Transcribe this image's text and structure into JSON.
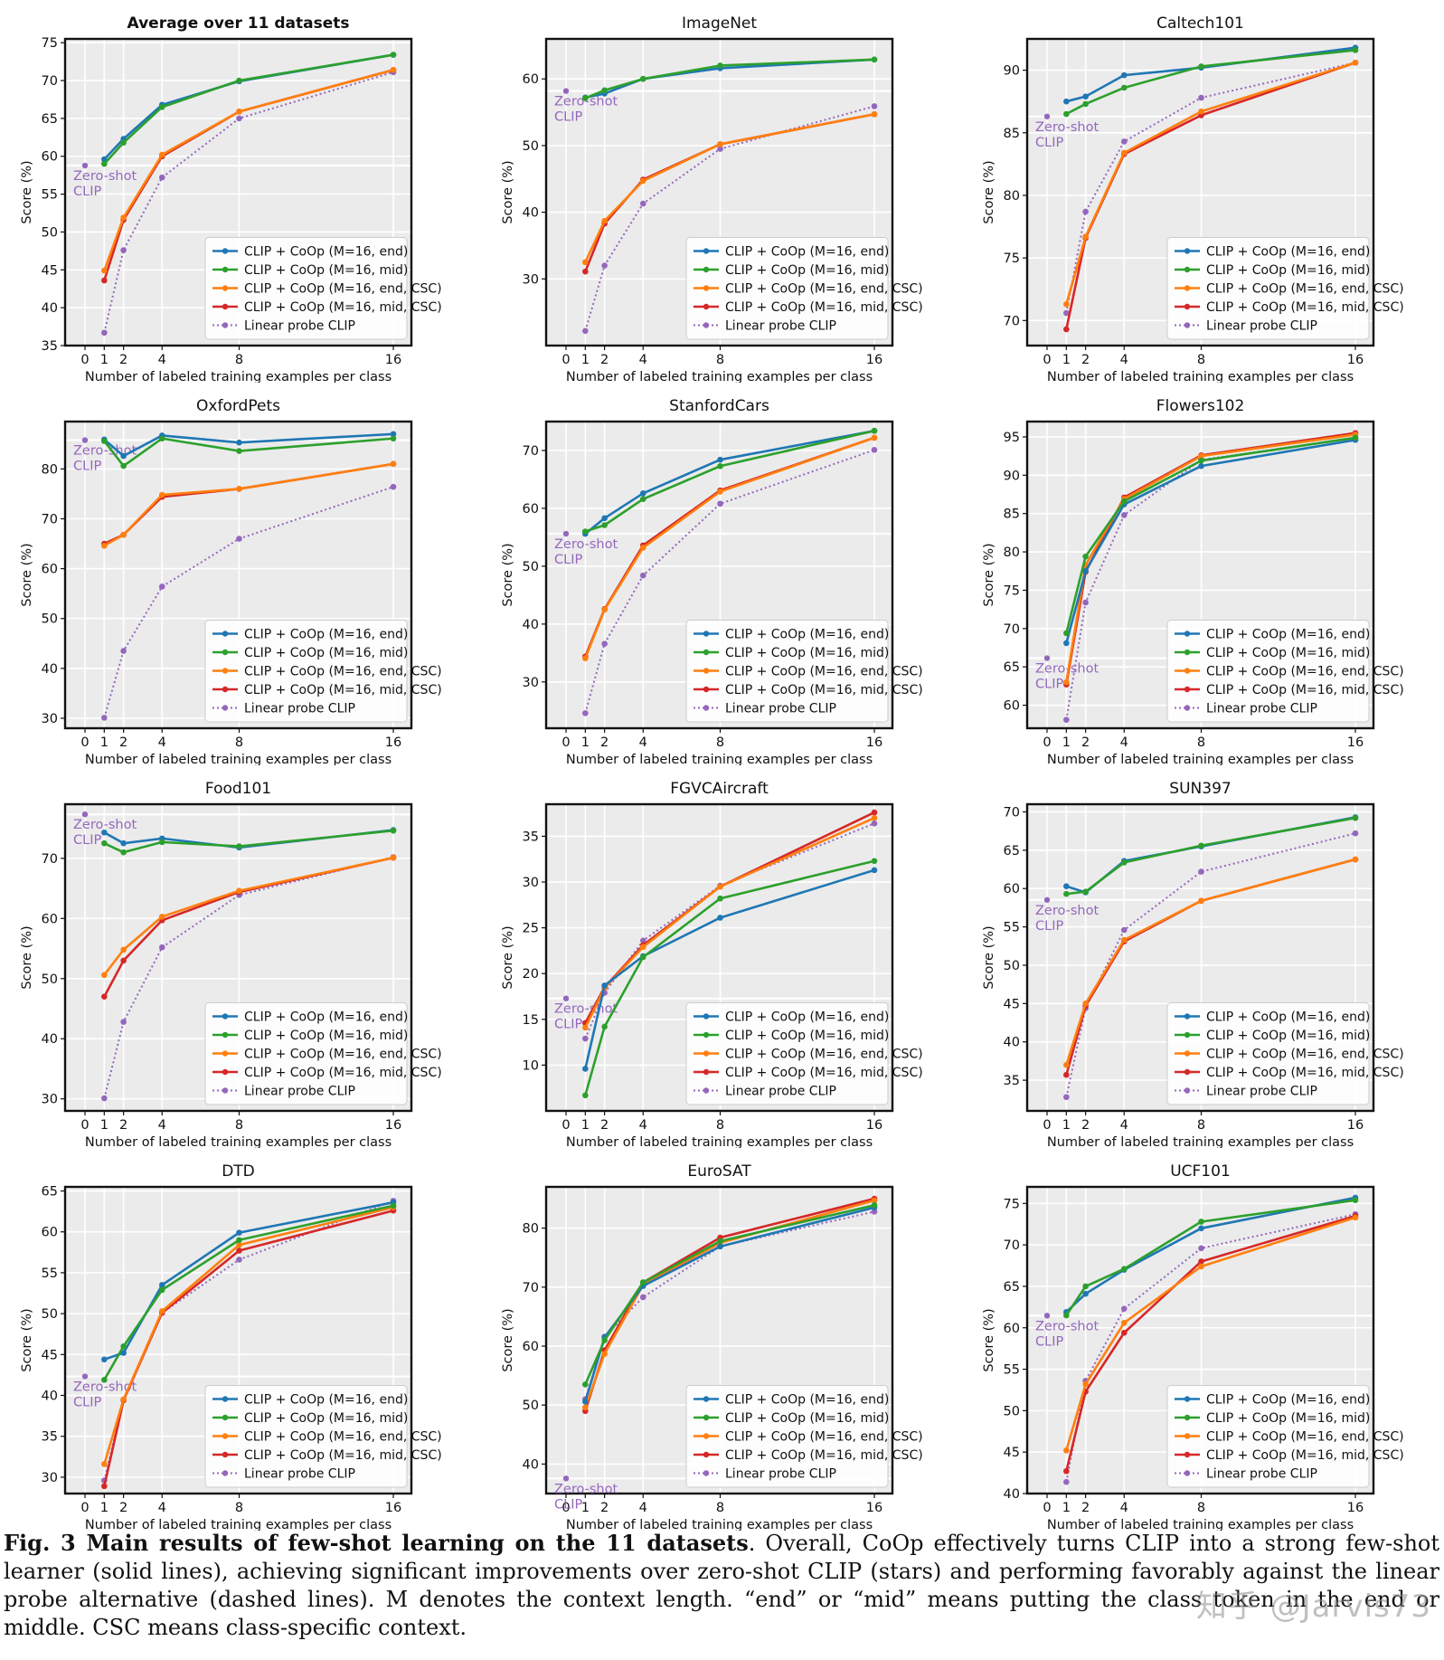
{
  "chart_data": [
    {
      "type": "line",
      "title": "Average over 11 datasets",
      "title_bold": true,
      "xlabel": "Number of labeled training examples per class",
      "ylabel": "Score (%)",
      "x": [
        1,
        2,
        4,
        8,
        16
      ],
      "x_ticks": [
        0,
        1,
        2,
        4,
        8,
        16
      ],
      "ylim": [
        35,
        75.5
      ],
      "yticks": [
        35,
        40,
        45,
        50,
        55,
        60,
        65,
        70,
        75
      ],
      "legend": "bottom-right",
      "zero_shot": 58.77,
      "series": [
        {
          "name": "CLIP + CoOp (M=16, end)",
          "values": [
            59.6,
            62.3,
            66.8,
            69.9,
            73.4
          ]
        },
        {
          "name": "CLIP + CoOp (M=16, mid)",
          "values": [
            59.0,
            61.8,
            66.5,
            70.0,
            73.4
          ]
        },
        {
          "name": "CLIP + CoOp (M=16, end, CSC)",
          "values": [
            44.9,
            51.9,
            60.2,
            65.9,
            71.4
          ]
        },
        {
          "name": "CLIP + CoOp (M=16, mid, CSC)",
          "values": [
            43.6,
            51.6,
            60.0,
            65.9,
            71.4
          ]
        },
        {
          "name": "Linear probe CLIP",
          "values": [
            36.7,
            47.6,
            57.2,
            65.0,
            71.1
          ]
        }
      ]
    },
    {
      "type": "line",
      "title": "ImageNet",
      "xlabel": "Number of labeled training examples per class",
      "ylabel": "Score (%)",
      "x": [
        1,
        2,
        4,
        8,
        16
      ],
      "x_ticks": [
        0,
        1,
        2,
        4,
        8,
        16
      ],
      "ylim": [
        20,
        66
      ],
      "yticks": [
        30,
        40,
        50,
        60
      ],
      "legend": "bottom-right",
      "zero_shot": 58.18,
      "series": [
        {
          "name": "CLIP + CoOp (M=16, end)",
          "values": [
            57.2,
            57.8,
            60.0,
            61.6,
            62.9
          ]
        },
        {
          "name": "CLIP + CoOp (M=16, mid)",
          "values": [
            57.1,
            58.3,
            60.0,
            62.0,
            62.9
          ]
        },
        {
          "name": "CLIP + CoOp (M=16, end, CSC)",
          "values": [
            32.5,
            38.7,
            44.7,
            50.2,
            54.7
          ]
        },
        {
          "name": "CLIP + CoOp (M=16, mid, CSC)",
          "values": [
            31.1,
            38.3,
            44.9,
            50.2,
            54.7
          ]
        },
        {
          "name": "Linear probe CLIP",
          "values": [
            22.2,
            32.0,
            41.3,
            49.5,
            55.9
          ]
        }
      ]
    },
    {
      "type": "line",
      "title": "Caltech101",
      "xlabel": "Number of labeled training examples per class",
      "ylabel": "Score (%)",
      "x": [
        1,
        2,
        4,
        8,
        16
      ],
      "x_ticks": [
        0,
        1,
        2,
        4,
        8,
        16
      ],
      "ylim": [
        68,
        92.5
      ],
      "yticks": [
        70,
        75,
        80,
        85,
        90
      ],
      "legend": "bottom-right",
      "zero_shot": 86.3,
      "series": [
        {
          "name": "CLIP + CoOp (M=16, end)",
          "values": [
            87.5,
            87.9,
            89.6,
            90.2,
            91.8
          ]
        },
        {
          "name": "CLIP + CoOp (M=16, mid)",
          "values": [
            86.5,
            87.3,
            88.6,
            90.3,
            91.6
          ]
        },
        {
          "name": "CLIP + CoOp (M=16, end, CSC)",
          "values": [
            71.3,
            76.7,
            83.4,
            86.7,
            90.6
          ]
        },
        {
          "name": "CLIP + CoOp (M=16, mid, CSC)",
          "values": [
            69.3,
            76.6,
            83.3,
            86.4,
            90.6
          ]
        },
        {
          "name": "Linear probe CLIP",
          "values": [
            70.6,
            78.7,
            84.3,
            87.8,
            90.6
          ]
        }
      ]
    },
    {
      "type": "line",
      "title": "OxfordPets",
      "xlabel": "Number of labeled training examples per class",
      "ylabel": "Score (%)",
      "x": [
        1,
        2,
        4,
        8,
        16
      ],
      "x_ticks": [
        0,
        1,
        2,
        4,
        8,
        16
      ],
      "ylim": [
        28,
        89.5
      ],
      "yticks": [
        30,
        40,
        50,
        60,
        70,
        80
      ],
      "legend": "bottom-right",
      "zero_shot": 85.77,
      "series": [
        {
          "name": "CLIP + CoOp (M=16, end)",
          "values": [
            85.9,
            82.6,
            86.7,
            85.3,
            87.0
          ]
        },
        {
          "name": "CLIP + CoOp (M=16, mid)",
          "values": [
            85.6,
            80.6,
            86.1,
            83.6,
            86.1
          ]
        },
        {
          "name": "CLIP + CoOp (M=16, end, CSC)",
          "values": [
            64.6,
            66.8,
            74.8,
            76.0,
            81.0
          ]
        },
        {
          "name": "CLIP + CoOp (M=16, mid, CSC)",
          "values": [
            65.0,
            66.8,
            74.4,
            76.0,
            81.0
          ]
        },
        {
          "name": "Linear probe CLIP",
          "values": [
            30.1,
            43.5,
            56.4,
            66.0,
            76.4
          ]
        }
      ]
    },
    {
      "type": "line",
      "title": "StanfordCars",
      "xlabel": "Number of labeled training examples per class",
      "ylabel": "Score (%)",
      "x": [
        1,
        2,
        4,
        8,
        16
      ],
      "x_ticks": [
        0,
        1,
        2,
        4,
        8,
        16
      ],
      "ylim": [
        22,
        75
      ],
      "yticks": [
        30,
        40,
        50,
        60,
        70
      ],
      "legend": "bottom-right",
      "zero_shot": 55.61,
      "series": [
        {
          "name": "CLIP + CoOp (M=16, end)",
          "values": [
            55.6,
            58.3,
            62.6,
            68.4,
            73.4
          ]
        },
        {
          "name": "CLIP + CoOp (M=16, mid)",
          "values": [
            56.0,
            57.1,
            61.6,
            67.3,
            73.4
          ]
        },
        {
          "name": "CLIP + CoOp (M=16, end, CSC)",
          "values": [
            34.1,
            42.5,
            53.2,
            62.9,
            72.2
          ]
        },
        {
          "name": "CLIP + CoOp (M=16, mid, CSC)",
          "values": [
            34.4,
            42.6,
            53.6,
            63.1,
            72.2
          ]
        },
        {
          "name": "Linear probe CLIP",
          "values": [
            24.6,
            36.6,
            48.4,
            60.8,
            70.1
          ]
        }
      ]
    },
    {
      "type": "line",
      "title": "Flowers102",
      "xlabel": "Number of labeled training examples per class",
      "ylabel": "Score (%)",
      "x": [
        1,
        2,
        4,
        8,
        16
      ],
      "x_ticks": [
        0,
        1,
        2,
        4,
        8,
        16
      ],
      "ylim": [
        57,
        97
      ],
      "yticks": [
        60,
        65,
        70,
        75,
        80,
        85,
        90,
        95
      ],
      "legend": "bottom-right",
      "zero_shot": 66.14,
      "series": [
        {
          "name": "CLIP + CoOp (M=16, end)",
          "values": [
            68.1,
            77.5,
            86.2,
            91.2,
            94.6
          ]
        },
        {
          "name": "CLIP + CoOp (M=16, mid)",
          "values": [
            69.4,
            79.4,
            86.6,
            91.9,
            94.9
          ]
        },
        {
          "name": "CLIP + CoOp (M=16, end, CSC)",
          "values": [
            63.0,
            78.3,
            86.9,
            92.5,
            95.3
          ]
        },
        {
          "name": "CLIP + CoOp (M=16, mid, CSC)",
          "values": [
            62.7,
            77.4,
            87.1,
            92.6,
            95.5
          ]
        },
        {
          "name": "Linear probe CLIP",
          "values": [
            58.1,
            73.4,
            84.8,
            92.0,
            94.9
          ]
        }
      ]
    },
    {
      "type": "line",
      "title": "Food101",
      "xlabel": "Number of labeled training examples per class",
      "ylabel": "Score (%)",
      "x": [
        1,
        2,
        4,
        8,
        16
      ],
      "x_ticks": [
        0,
        1,
        2,
        4,
        8,
        16
      ],
      "ylim": [
        28,
        79
      ],
      "yticks": [
        30,
        40,
        50,
        60,
        70
      ],
      "legend": "bottom-right",
      "zero_shot": 77.31,
      "series": [
        {
          "name": "CLIP + CoOp (M=16, end)",
          "values": [
            74.3,
            72.5,
            73.3,
            71.8,
            74.7
          ]
        },
        {
          "name": "CLIP + CoOp (M=16, mid)",
          "values": [
            72.5,
            71.0,
            72.7,
            72.0,
            74.6
          ]
        },
        {
          "name": "CLIP + CoOp (M=16, end, CSC)",
          "values": [
            50.6,
            54.8,
            60.3,
            64.6,
            70.1
          ]
        },
        {
          "name": "CLIP + CoOp (M=16, mid, CSC)",
          "values": [
            47.0,
            53.0,
            59.7,
            64.4,
            70.1
          ]
        },
        {
          "name": "Linear probe CLIP",
          "values": [
            30.1,
            42.8,
            55.2,
            63.9,
            70.2
          ]
        }
      ]
    },
    {
      "type": "line",
      "title": "FGVCAircraft",
      "xlabel": "Number of labeled training examples per class",
      "ylabel": "Score (%)",
      "x": [
        1,
        2,
        4,
        8,
        16
      ],
      "x_ticks": [
        0,
        1,
        2,
        4,
        8,
        16
      ],
      "ylim": [
        5,
        38.5
      ],
      "yticks": [
        10,
        15,
        20,
        25,
        30,
        35
      ],
      "legend": "bottom-right",
      "zero_shot": 17.28,
      "series": [
        {
          "name": "CLIP + CoOp (M=16, end)",
          "values": [
            9.6,
            18.7,
            21.9,
            26.1,
            31.3
          ]
        },
        {
          "name": "CLIP + CoOp (M=16, mid)",
          "values": [
            6.7,
            14.2,
            21.8,
            28.2,
            32.3
          ]
        },
        {
          "name": "CLIP + CoOp (M=16, end, CSC)",
          "values": [
            14.1,
            18.4,
            22.9,
            29.5,
            37.0
          ]
        },
        {
          "name": "CLIP + CoOp (M=16, mid, CSC)",
          "values": [
            14.6,
            18.5,
            23.1,
            29.5,
            37.6
          ]
        },
        {
          "name": "Linear probe CLIP",
          "values": [
            12.9,
            17.9,
            23.6,
            29.6,
            36.4
          ]
        }
      ]
    },
    {
      "type": "line",
      "title": "SUN397",
      "xlabel": "Number of labeled training examples per class",
      "ylabel": "Score (%)",
      "x": [
        1,
        2,
        4,
        8,
        16
      ],
      "x_ticks": [
        0,
        1,
        2,
        4,
        8,
        16
      ],
      "ylim": [
        31,
        71
      ],
      "yticks": [
        35,
        40,
        45,
        50,
        55,
        60,
        65,
        70
      ],
      "legend": "bottom-right",
      "zero_shot": 58.52,
      "series": [
        {
          "name": "CLIP + CoOp (M=16, end)",
          "values": [
            60.3,
            59.5,
            63.6,
            65.5,
            69.3
          ]
        },
        {
          "name": "CLIP + CoOp (M=16, mid)",
          "values": [
            59.3,
            59.6,
            63.4,
            65.6,
            69.2
          ]
        },
        {
          "name": "CLIP + CoOp (M=16, end, CSC)",
          "values": [
            37.0,
            45.0,
            53.3,
            58.4,
            63.8
          ]
        },
        {
          "name": "CLIP + CoOp (M=16, mid, CSC)",
          "values": [
            35.7,
            44.7,
            53.1,
            58.4,
            63.8
          ]
        },
        {
          "name": "Linear probe CLIP",
          "values": [
            32.8,
            44.4,
            54.6,
            62.2,
            67.2
          ]
        }
      ]
    },
    {
      "type": "line",
      "title": "DTD",
      "xlabel": "Number of labeled training examples per class",
      "ylabel": "Score (%)",
      "x": [
        1,
        2,
        4,
        8,
        16
      ],
      "x_ticks": [
        0,
        1,
        2,
        4,
        8,
        16
      ],
      "ylim": [
        28,
        65.5
      ],
      "yticks": [
        30,
        35,
        40,
        45,
        50,
        55,
        60,
        65
      ],
      "legend": "bottom-right",
      "zero_shot": 42.32,
      "series": [
        {
          "name": "CLIP + CoOp (M=16, end)",
          "values": [
            44.4,
            45.2,
            53.5,
            59.9,
            63.6
          ]
        },
        {
          "name": "CLIP + CoOp (M=16, mid)",
          "values": [
            41.9,
            46.0,
            52.9,
            59.0,
            63.2
          ]
        },
        {
          "name": "CLIP + CoOp (M=16, end, CSC)",
          "values": [
            31.6,
            39.5,
            50.3,
            58.4,
            63.0
          ]
        },
        {
          "name": "CLIP + CoOp (M=16, mid, CSC)",
          "values": [
            28.9,
            39.4,
            50.1,
            57.7,
            62.6
          ]
        },
        {
          "name": "Linear probe CLIP",
          "values": [
            29.6,
            39.5,
            50.1,
            56.6,
            63.8
          ]
        }
      ]
    },
    {
      "type": "line",
      "title": "EuroSAT",
      "xlabel": "Number of labeled training examples per class",
      "ylabel": "Score (%)",
      "x": [
        1,
        2,
        4,
        8,
        16
      ],
      "x_ticks": [
        0,
        1,
        2,
        4,
        8,
        16
      ],
      "ylim": [
        35,
        87
      ],
      "yticks": [
        40,
        50,
        60,
        70,
        80
      ],
      "legend": "bottom-right",
      "zero_shot": 37.56,
      "series": [
        {
          "name": "CLIP + CoOp (M=16, end)",
          "values": [
            50.6,
            61.5,
            70.2,
            76.9,
            83.5
          ]
        },
        {
          "name": "CLIP + CoOp (M=16, mid)",
          "values": [
            53.5,
            61.0,
            70.8,
            77.8,
            83.9
          ]
        },
        {
          "name": "CLIP + CoOp (M=16, end, CSC)",
          "values": [
            49.6,
            58.7,
            70.4,
            77.5,
            84.7
          ]
        },
        {
          "name": "CLIP + CoOp (M=16, mid, CSC)",
          "values": [
            49.0,
            59.3,
            70.8,
            78.4,
            85.0
          ]
        },
        {
          "name": "Linear probe CLIP",
          "values": [
            51.0,
            61.6,
            68.3,
            76.9,
            82.8
          ]
        }
      ]
    },
    {
      "type": "line",
      "title": "UCF101",
      "xlabel": "Number of labeled training examples per class",
      "ylabel": "Score (%)",
      "x": [
        1,
        2,
        4,
        8,
        16
      ],
      "x_ticks": [
        0,
        1,
        2,
        4,
        8,
        16
      ],
      "ylim": [
        40,
        77
      ],
      "yticks": [
        40,
        45,
        50,
        55,
        60,
        65,
        70,
        75
      ],
      "legend": "bottom-right",
      "zero_shot": 61.46,
      "series": [
        {
          "name": "CLIP + CoOp (M=16, end)",
          "values": [
            61.9,
            64.1,
            67.0,
            72.0,
            75.7
          ]
        },
        {
          "name": "CLIP + CoOp (M=16, mid)",
          "values": [
            61.5,
            65.0,
            67.1,
            72.8,
            75.4
          ]
        },
        {
          "name": "CLIP + CoOp (M=16, end, CSC)",
          "values": [
            45.2,
            53.2,
            60.6,
            67.4,
            73.3
          ]
        },
        {
          "name": "CLIP + CoOp (M=16, mid, CSC)",
          "values": [
            42.7,
            52.3,
            59.4,
            68.0,
            73.5
          ]
        },
        {
          "name": "Linear probe CLIP",
          "values": [
            41.4,
            53.6,
            62.3,
            69.6,
            73.7
          ]
        }
      ]
    }
  ],
  "colors": {
    "CLIP + CoOp (M=16, end)": "#1f77b4",
    "CLIP + CoOp (M=16, mid)": "#2ca02c",
    "CLIP + CoOp (M=16, end, CSC)": "#ff7f0e",
    "CLIP + CoOp (M=16, mid, CSC)": "#d62728",
    "Linear probe CLIP": "#9467bd",
    "plot_background": "#ebebeb",
    "zero_shot_label": "#9467bd"
  },
  "zero_shot_label": [
    "Zero-shot",
    "CLIP"
  ],
  "caption": {
    "lead": "Fig. 3 Main results of few-shot learning on the 11 datasets",
    "text": ". Overall, CoOp effectively turns CLIP into a strong few-shot learner (solid lines), achieving significant improvements over zero-shot CLIP (stars) and performing favorably against the linear probe alternative (dashed lines). M denotes the context length. “end” or “mid” means putting the class token in the end or middle. CSC means class-specific context."
  },
  "watermark": "知乎 @Jarvis73"
}
